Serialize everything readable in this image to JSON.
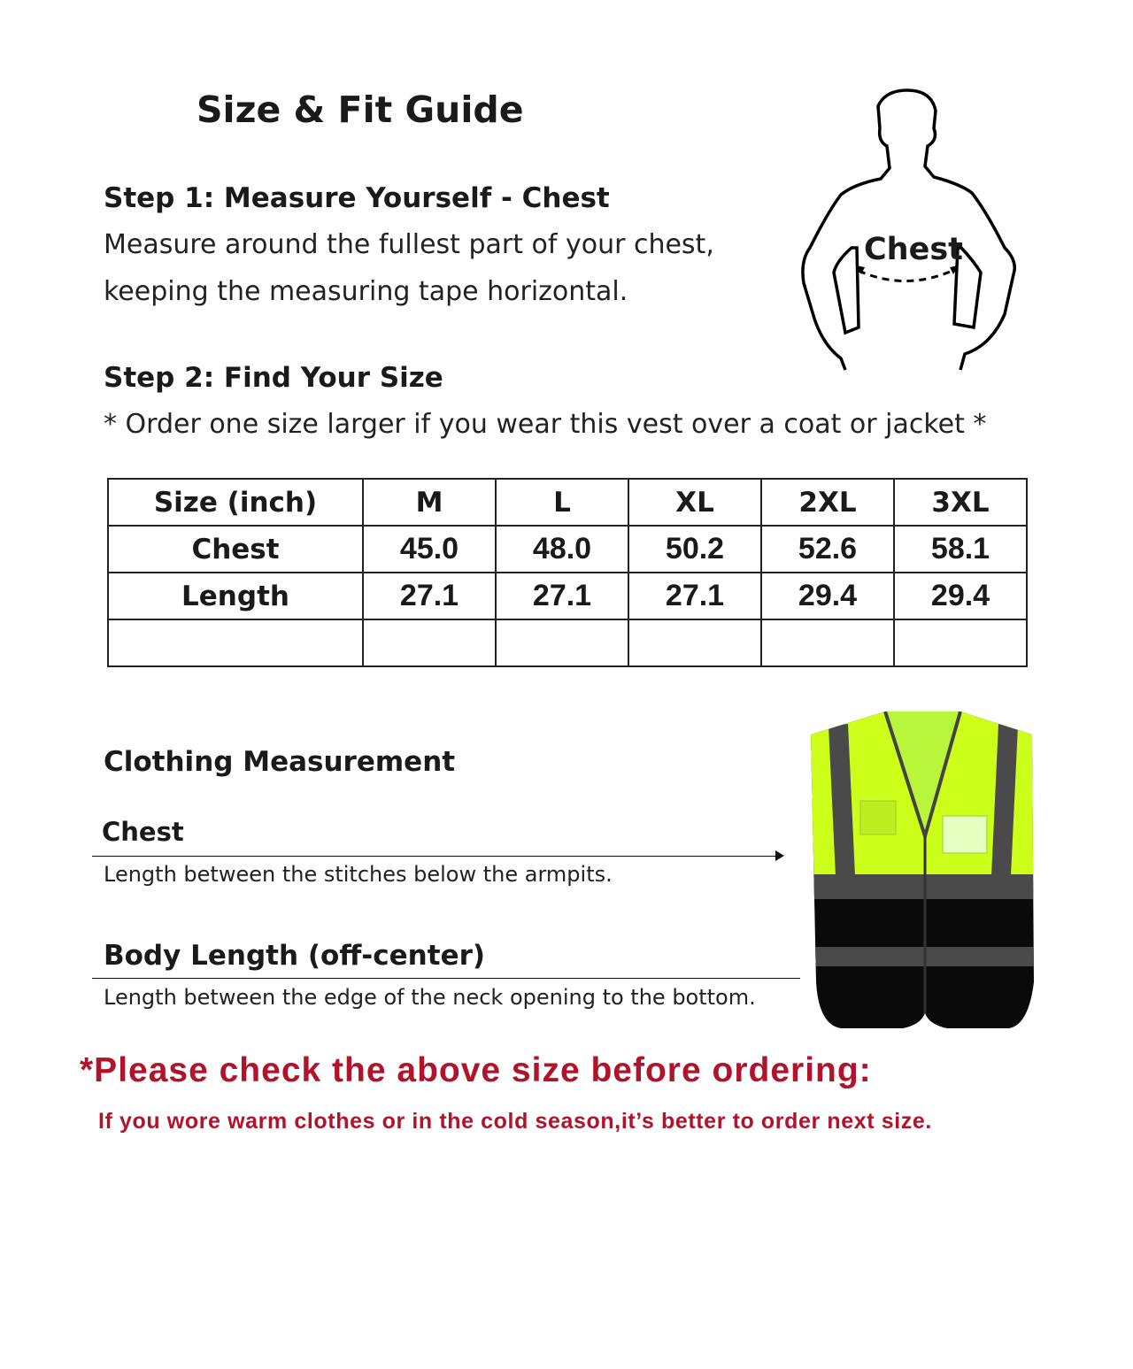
{
  "title": "Size & Fit Guide",
  "step1": {
    "heading": "Step 1: Measure Yourself - Chest",
    "line1": "Measure around the fullest part of your chest,",
    "line2": "keeping the measuring tape horizontal."
  },
  "figure": {
    "chest_label": "Chest"
  },
  "step2": {
    "heading": "Step 2: Find Your Size",
    "note": "* Order one size larger if you wear this vest over a coat or jacket *"
  },
  "size_table": {
    "header": [
      "Size (inch)",
      "M",
      "L",
      "XL",
      "2XL",
      "3XL"
    ],
    "rows": [
      [
        "Chest",
        "45.0",
        "48.0",
        "50.2",
        "52.6",
        "58.1"
      ],
      [
        "Length",
        "27.1",
        "27.1",
        "27.1",
        "29.4",
        "29.4"
      ],
      [
        "",
        "",
        "",
        "",
        "",
        ""
      ]
    ]
  },
  "clothing": {
    "heading": "Clothing Measurement",
    "chest_label": "Chest",
    "chest_desc": "Length between the stitches below the armpits.",
    "length_label": "Body Length (off-center)",
    "length_desc": "Length between the edge of the neck opening to the bottom."
  },
  "warning": {
    "main": "*Please check the above size before ordering:",
    "sub": "If you wore warm clothes or in the cold season,it’s better to order next size."
  },
  "colors": {
    "warning_red": "#b0132a",
    "vest_yellow": "#ccff1a",
    "vest_black": "#0a0a0a",
    "reflective_gray": "#4a4a4a"
  }
}
